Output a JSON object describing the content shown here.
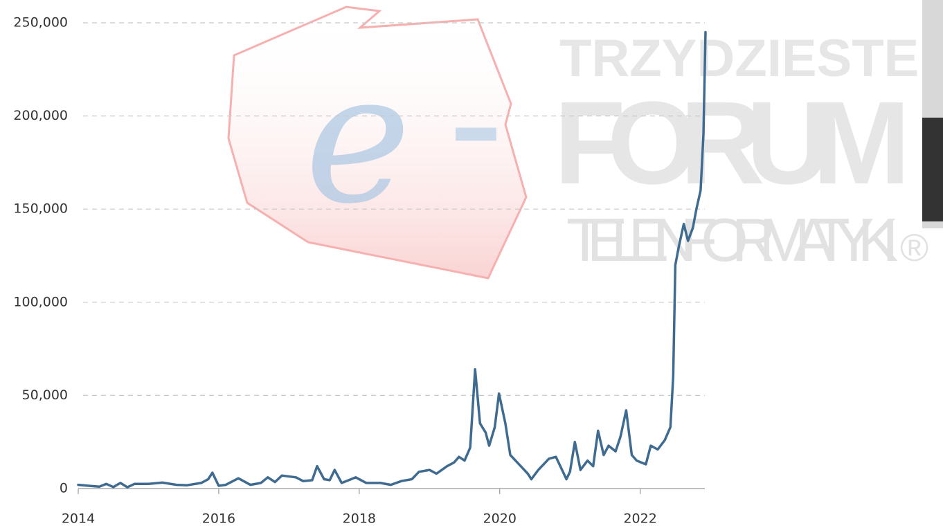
{
  "chart_data": {
    "type": "line",
    "annotations": [
      "e",
      "–",
      "TRZYDZIESTE",
      "FORUM",
      "TELEINFORMATYKI",
      "®"
    ],
    "x": [
      2014.0,
      2014.15,
      2014.3,
      2014.4,
      2014.5,
      2014.6,
      2014.7,
      2014.8,
      2015.0,
      2015.2,
      2015.4,
      2015.55,
      2015.75,
      2015.85,
      2015.91,
      2016.0,
      2016.1,
      2016.28,
      2016.45,
      2016.6,
      2016.7,
      2016.8,
      2016.9,
      2017.1,
      2017.2,
      2017.33,
      2017.4,
      2017.5,
      2017.58,
      2017.65,
      2017.75,
      2017.95,
      2018.1,
      2018.3,
      2018.45,
      2018.6,
      2018.75,
      2018.85,
      2019.0,
      2019.1,
      2019.25,
      2019.35,
      2019.42,
      2019.5,
      2019.58,
      2019.65,
      2019.72,
      2019.8,
      2019.85,
      2019.93,
      2019.99,
      2020.08,
      2020.15,
      2020.3,
      2020.4,
      2020.45,
      2020.55,
      2020.7,
      2020.8,
      2020.9,
      2020.95,
      2021.0,
      2021.07,
      2021.15,
      2021.25,
      2021.33,
      2021.4,
      2021.48,
      2021.55,
      2021.65,
      2021.72,
      2021.8,
      2021.88,
      2021.95,
      2022.08,
      2022.15,
      2022.25,
      2022.35,
      2022.43,
      2022.47,
      2022.5,
      2022.55,
      2022.62,
      2022.68,
      2022.75,
      2022.8,
      2022.86,
      2022.9,
      2022.93
    ],
    "values": [
      2000,
      1500,
      1000,
      2500,
      800,
      3000,
      700,
      2500,
      2500,
      3200,
      2000,
      1800,
      3000,
      5000,
      8500,
      1500,
      2000,
      5500,
      2000,
      3000,
      6000,
      3500,
      7000,
      6000,
      4000,
      4500,
      12000,
      5000,
      4500,
      10000,
      3000,
      6000,
      3000,
      3000,
      2000,
      4000,
      5000,
      9000,
      10000,
      8000,
      12000,
      14000,
      17000,
      15000,
      22000,
      64000,
      35000,
      30000,
      23000,
      33000,
      51000,
      35000,
      18000,
      12000,
      8000,
      5000,
      10000,
      16000,
      17000,
      9000,
      5000,
      9000,
      25000,
      10000,
      15000,
      12000,
      31000,
      18000,
      23000,
      20000,
      28000,
      42000,
      18000,
      15000,
      13000,
      23000,
      21000,
      26000,
      33000,
      60000,
      120000,
      130000,
      142000,
      133000,
      140000,
      150000,
      160000,
      190000,
      245000
    ],
    "color": "#3f6b91",
    "xlim": [
      2014,
      2022.92
    ],
    "xticks": [
      2014,
      2016,
      2018,
      2020,
      2022
    ],
    "ylim": [
      0,
      250000
    ],
    "yticks": [
      0,
      {
        "value": 50000,
        "label": "50,000"
      },
      {
        "value": 100000,
        "label": "100,000"
      },
      {
        "value": 150000,
        "label": "150,000"
      },
      {
        "value": 200000,
        "label": "200,000"
      },
      {
        "value": 250000,
        "label": "250,000"
      }
    ],
    "grid": true
  }
}
